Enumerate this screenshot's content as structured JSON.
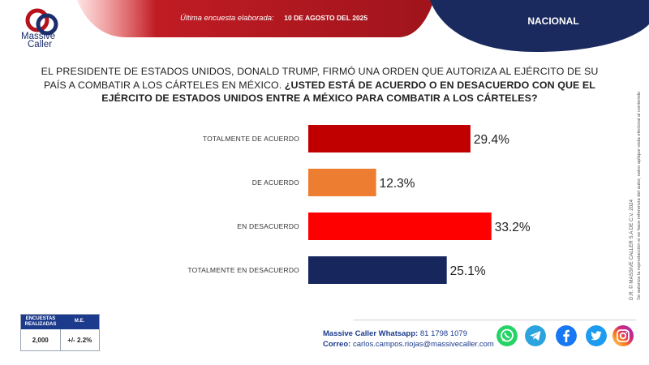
{
  "header": {
    "last_survey_label": "Última encuesta elaborada:",
    "date": "10 DE AGOSTO DEL 2025",
    "region": "NACIONAL"
  },
  "brand": {
    "line1": "Massive",
    "line2": "Caller"
  },
  "question": {
    "intro": "EL PRESIDENTE DE ESTADOS UNIDOS, DONALD TRUMP, FIRMÓ UNA ORDEN QUE AUTORIZA AL EJÉRCITO DE SU PAÍS A COMBATIR A LOS CÁRTELES EN MÉXICO.",
    "bold": "¿USTED ESTÁ DE ACUERDO O EN DESACUERDO CON QUE EL EJÉRCITO DE ESTADOS UNIDOS ENTRE A MÉXICO PARA COMBATIR A LOS CÁRTELES?"
  },
  "chart_data": {
    "type": "bar",
    "orientation": "horizontal",
    "title": "",
    "xlabel": "",
    "ylabel": "",
    "xlim": [
      0,
      40
    ],
    "categories": [
      "TOTALMENTE DE ACUERDO",
      "DE ACUERDO",
      "EN DESACUERDO",
      "TOTALMENTE EN DESACUERDO"
    ],
    "values": [
      29.4,
      12.3,
      33.2,
      25.1
    ],
    "value_labels": [
      "29.4%",
      "12.3%",
      "33.2%",
      "25.1%"
    ],
    "colors": [
      "#c00000",
      "#ed7d31",
      "#ff0000",
      "#17275e"
    ],
    "grid": false,
    "legend": "none"
  },
  "side_note": {
    "line1": "D.R. © MASSIVE CALLER S.A DE C.V. 2024",
    "line2": "Se autoriza la reproducción si se hace referencia del autor, salvo aplique veda electoral al contenido"
  },
  "stats": {
    "col1_header": "ENCUESTAS REALIZADAS",
    "col2_header": "M.E.",
    "col1_value": "2,000",
    "col2_value": "+/- 2.2%"
  },
  "footer": {
    "whatsapp_label": "Massive Caller Whatsapp:",
    "whatsapp_number": "81 1798 1079",
    "email_label": "Correo:",
    "email": "carlos.campos.riojas@massivecaller.com"
  },
  "colors": {
    "header_red": "#a8141c",
    "header_navy": "#1a2a5e",
    "brand_blue": "#1c3b8c"
  },
  "social_icons": [
    "whatsapp-icon",
    "telegram-icon",
    "facebook-icon",
    "twitter-icon",
    "instagram-icon"
  ]
}
